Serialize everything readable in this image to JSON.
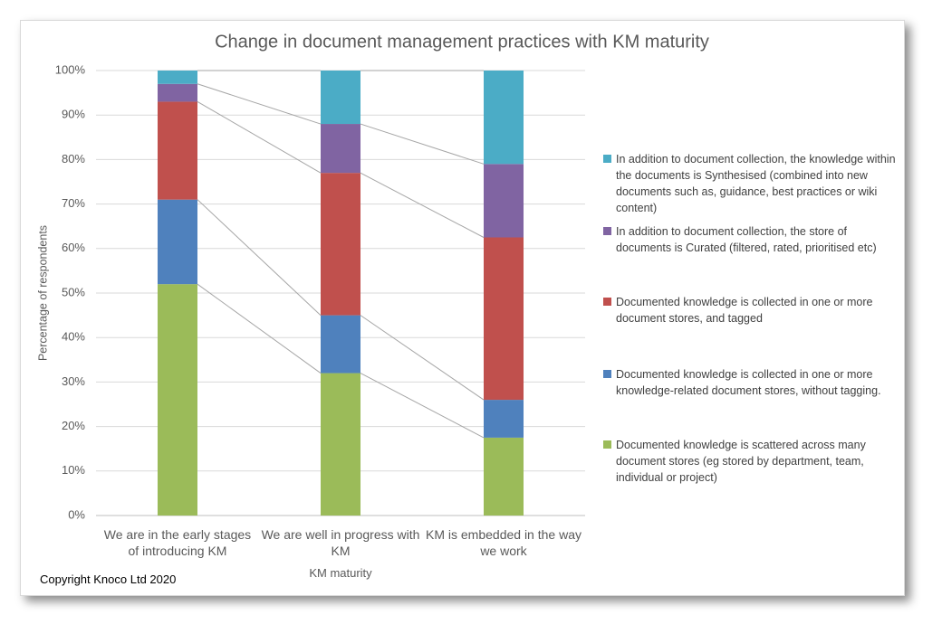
{
  "chart_data": {
    "type": "stacked_bar",
    "title": "Change in document management practices with KM maturity",
    "x_label": "KM maturity",
    "y_label": "Percentage of respondents",
    "categories": [
      "We are in the early stages of introducing KM",
      "We are well in progress with KM",
      "KM is embedded in the way we work"
    ],
    "series": [
      {
        "name": "Documented knowledge is scattered across many document stores (eg stored by department, team, individual or project)",
        "color": "#9bbb59",
        "values": [
          52,
          32,
          17.5
        ]
      },
      {
        "name": "Documented knowledge is collected in one or more knowledge-related document stores, without tagging.",
        "color": "#4f81bd",
        "values": [
          19,
          13,
          8.5
        ]
      },
      {
        "name": "Documented knowledge is collected in one or more document stores, and tagged",
        "color": "#c0504d",
        "values": [
          22,
          32,
          36.5
        ]
      },
      {
        "name": "In addition to document collection, the store of documents is Curated (filtered, rated, prioritised etc)",
        "color": "#8064a2",
        "values": [
          4,
          11,
          16.5
        ]
      },
      {
        "name": "In addition to document collection, the knowledge within the documents is Synthesised (combined into new documents such as, guidance, best practices or wiki content)",
        "color": "#4bacc6",
        "values": [
          3,
          12,
          21
        ]
      }
    ],
    "ylim": [
      0,
      100
    ],
    "yticks": [
      {
        "value": 0,
        "label": "0%"
      },
      {
        "value": 10,
        "label": "10%"
      },
      {
        "value": 20,
        "label": "20%"
      },
      {
        "value": 30,
        "label": "30%"
      },
      {
        "value": 40,
        "label": "40%"
      },
      {
        "value": 50,
        "label": "50%"
      },
      {
        "value": 60,
        "label": "60%"
      },
      {
        "value": 70,
        "label": "70%"
      },
      {
        "value": 80,
        "label": "80%"
      },
      {
        "value": 90,
        "label": "90%"
      },
      {
        "value": 100,
        "label": "100%"
      }
    ],
    "grid": true,
    "series_lines": true,
    "legend": "right",
    "footnote": "Copyright Knoco Ltd 2020"
  }
}
